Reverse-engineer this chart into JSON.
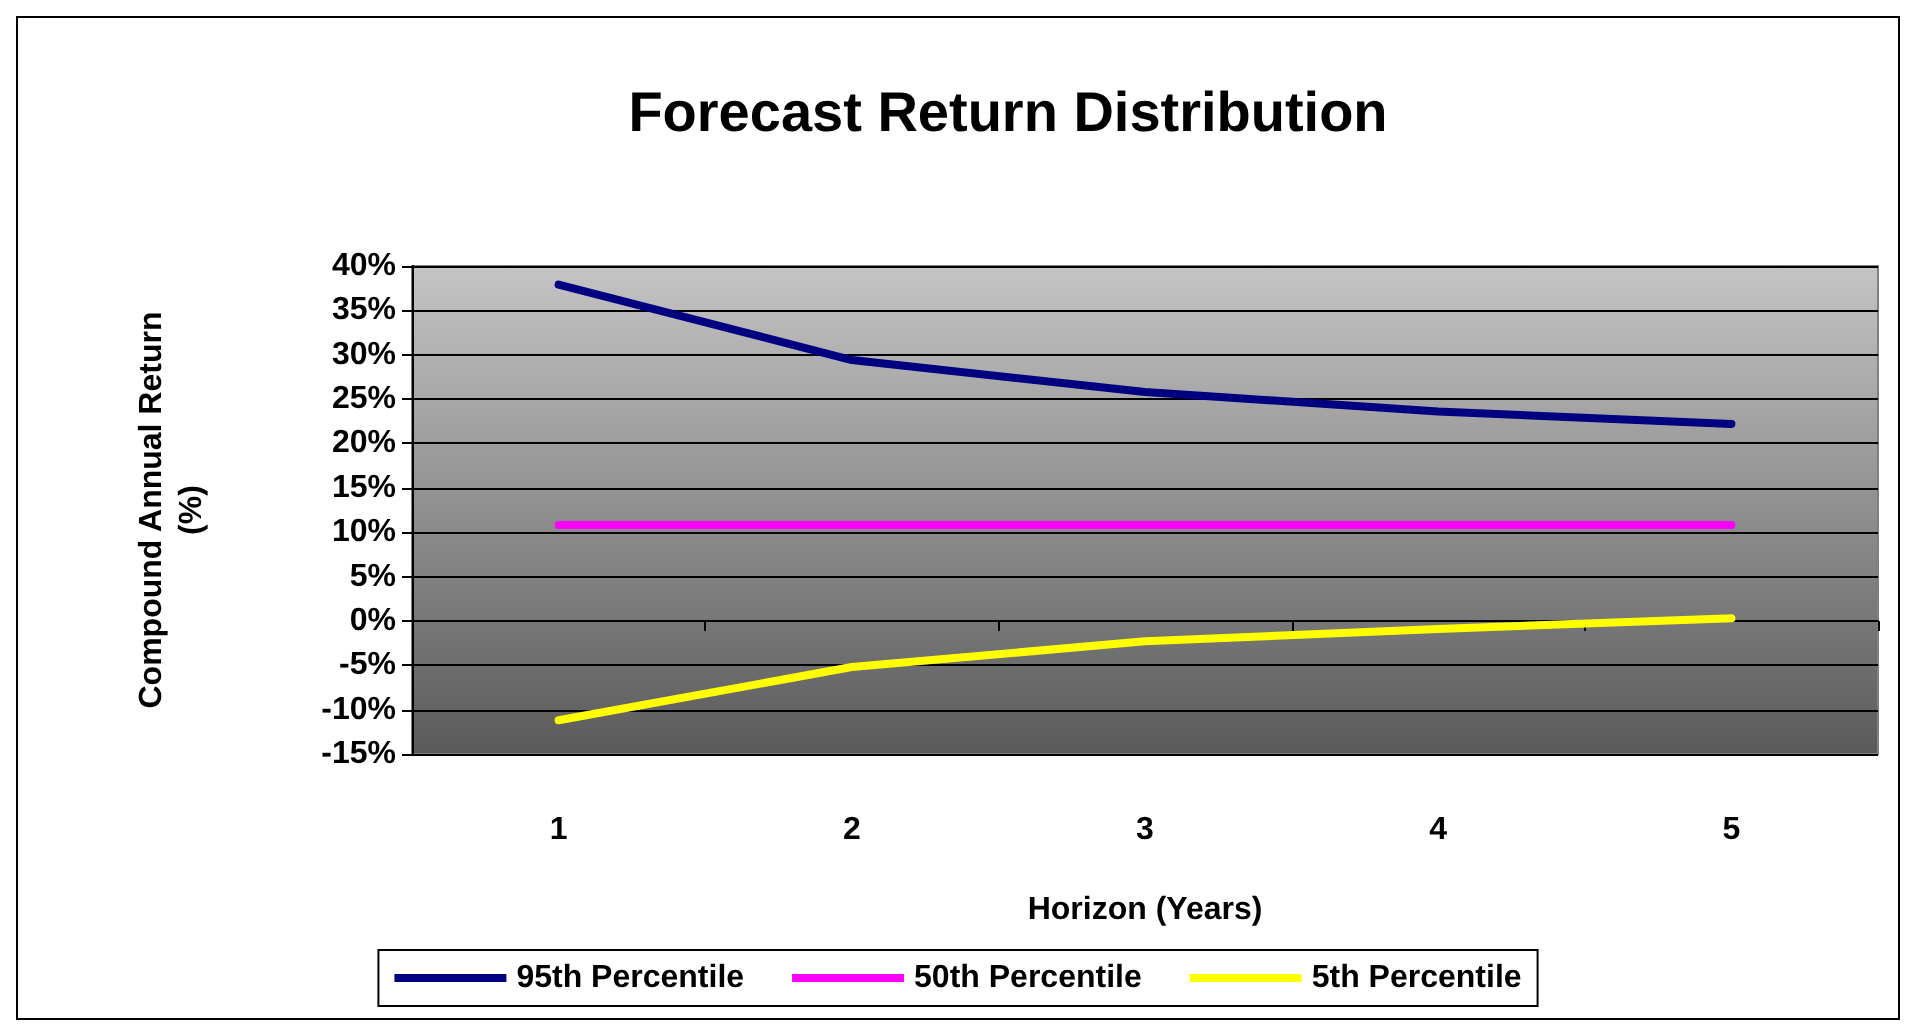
{
  "chart_data": {
    "type": "line",
    "title": "Forecast Return Distribution",
    "xlabel": "Horizon (Years)",
    "ylabel": "Compound Annual Return\n(%)",
    "categories": [
      "1",
      "2",
      "3",
      "4",
      "5"
    ],
    "series": [
      {
        "name": "95th Percentile",
        "color": "#000080",
        "values": [
          37.9,
          29.4,
          25.8,
          23.6,
          22.2
        ]
      },
      {
        "name": "50th Percentile",
        "color": "#ff00ff",
        "values": [
          10.8,
          10.8,
          10.8,
          10.8,
          10.8
        ]
      },
      {
        "name": "5th Percentile",
        "color": "#ffff00",
        "values": [
          -11.2,
          -5.2,
          -2.3,
          -0.9,
          0.3
        ]
      }
    ],
    "ylim": [
      -15,
      40
    ],
    "yticks": [
      {
        "value": -15,
        "label": "-15%"
      },
      {
        "value": -10,
        "label": "-10%"
      },
      {
        "value": -5,
        "label": "-5%"
      },
      {
        "value": 0,
        "label": "0%"
      },
      {
        "value": 5,
        "label": "5%"
      },
      {
        "value": 10,
        "label": "10%"
      },
      {
        "value": 15,
        "label": "15%"
      },
      {
        "value": 20,
        "label": "20%"
      },
      {
        "value": 25,
        "label": "25%"
      },
      {
        "value": 30,
        "label": "30%"
      },
      {
        "value": 35,
        "label": "35%"
      },
      {
        "value": 40,
        "label": "40%"
      }
    ],
    "grid": "y",
    "legend": "bottom",
    "marker": "none",
    "line_style": "solid"
  }
}
